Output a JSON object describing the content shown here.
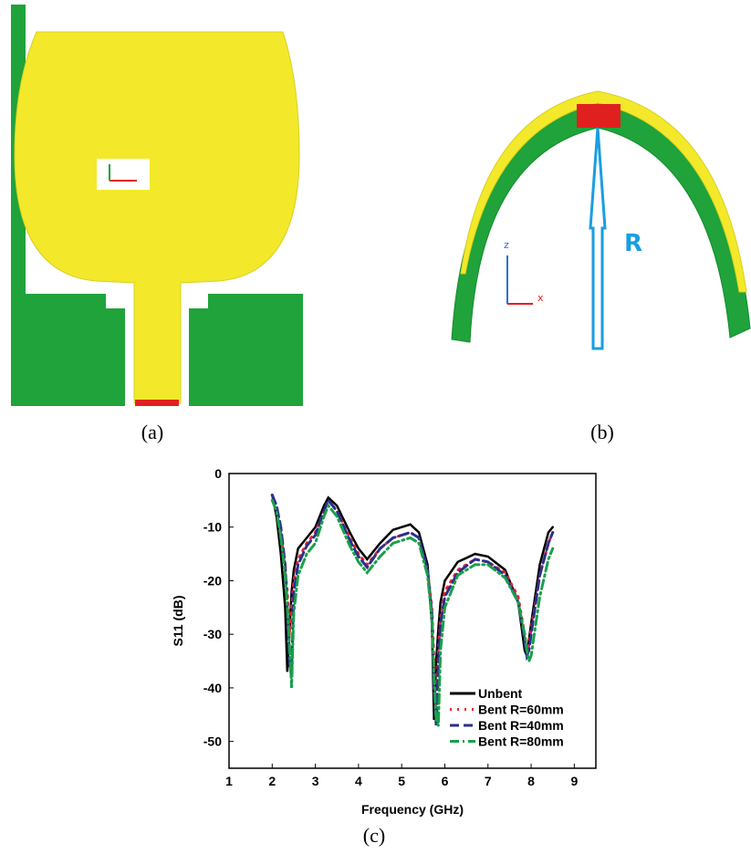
{
  "panels": {
    "a": {
      "caption": "(a)"
    },
    "b": {
      "caption": "(b)",
      "radius_label": "R",
      "axis_z": "z",
      "axis_x": "x"
    }
  },
  "chart_data": {
    "type": "line",
    "caption": "(c)",
    "xlabel": "Frequency (GHz)",
    "ylabel": "S11 (dB)",
    "x": [
      2.0,
      2.1,
      2.2,
      2.3,
      2.35,
      2.4,
      2.45,
      2.5,
      2.6,
      2.8,
      3.0,
      3.2,
      3.3,
      3.5,
      3.8,
      4.0,
      4.2,
      4.5,
      4.8,
      5.2,
      5.4,
      5.6,
      5.7,
      5.75,
      5.8,
      5.85,
      5.9,
      6.0,
      6.3,
      6.7,
      7.0,
      7.4,
      7.7,
      7.85,
      7.9,
      7.95,
      8.0,
      8.2,
      8.4,
      8.5
    ],
    "series": [
      {
        "name": "Unbent",
        "color": "#000000",
        "style": "solid",
        "values": [
          -4,
          -8,
          -15,
          -25,
          -37,
          -30,
          -22,
          -18,
          -14,
          -12,
          -10,
          -6,
          -4.5,
          -6,
          -11,
          -14,
          -16,
          -13,
          -10.5,
          -9.5,
          -11,
          -17,
          -28,
          -46,
          -35,
          -29,
          -24,
          -20,
          -16.5,
          -15,
          -15.5,
          -18,
          -24,
          -33,
          -34,
          -31,
          -28,
          -17,
          -11,
          -10
        ]
      },
      {
        "name": "Bent R=60mm",
        "color": "#e8262b",
        "style": "dotted",
        "values": [
          -4,
          -6,
          -11,
          -18,
          -22,
          -30,
          -25,
          -20,
          -16,
          -13,
          -11,
          -7,
          -5,
          -7,
          -12,
          -15,
          -17,
          -14,
          -12,
          -11,
          -12,
          -18,
          -25,
          -35,
          -45,
          -33,
          -27,
          -22,
          -18,
          -16,
          -16.5,
          -18.5,
          -23,
          -30,
          -33,
          -32,
          -29,
          -19,
          -13,
          -11
        ]
      },
      {
        "name": "Bent R=40mm",
        "color": "#2b2f8f",
        "style": "dashed",
        "values": [
          -4,
          -6,
          -10,
          -17,
          -25,
          -35,
          -38,
          -22,
          -17,
          -13.5,
          -11.5,
          -7,
          -5,
          -7,
          -12.5,
          -15.5,
          -17.5,
          -14,
          -12,
          -11,
          -12,
          -18,
          -26,
          -40,
          -47,
          -36,
          -28,
          -23,
          -18.5,
          -16,
          -16.5,
          -19,
          -24,
          -31,
          -34,
          -33,
          -30,
          -19,
          -13,
          -11
        ]
      },
      {
        "name": "Bent R=80mm",
        "color": "#1aa04a",
        "style": "dashdot",
        "values": [
          -5,
          -7,
          -12,
          -19,
          -25,
          -32,
          -40,
          -26,
          -19,
          -15,
          -13,
          -8,
          -6,
          -8,
          -13.5,
          -16.5,
          -18.5,
          -15.5,
          -13,
          -12,
          -13,
          -19,
          -27,
          -38,
          -46,
          -47,
          -33,
          -25,
          -19,
          -17,
          -17,
          -19.5,
          -24,
          -30,
          -33,
          -35,
          -34,
          -23,
          -16,
          -14
        ]
      }
    ],
    "xlim": [
      1,
      9.5
    ],
    "xticks": [
      1,
      2,
      3,
      4,
      5,
      6,
      7,
      8,
      9
    ],
    "ylim": [
      -55,
      0
    ],
    "yticks": [
      0,
      -10,
      -20,
      -30,
      -40,
      -50
    ],
    "legend": "lower right",
    "grid": false
  }
}
